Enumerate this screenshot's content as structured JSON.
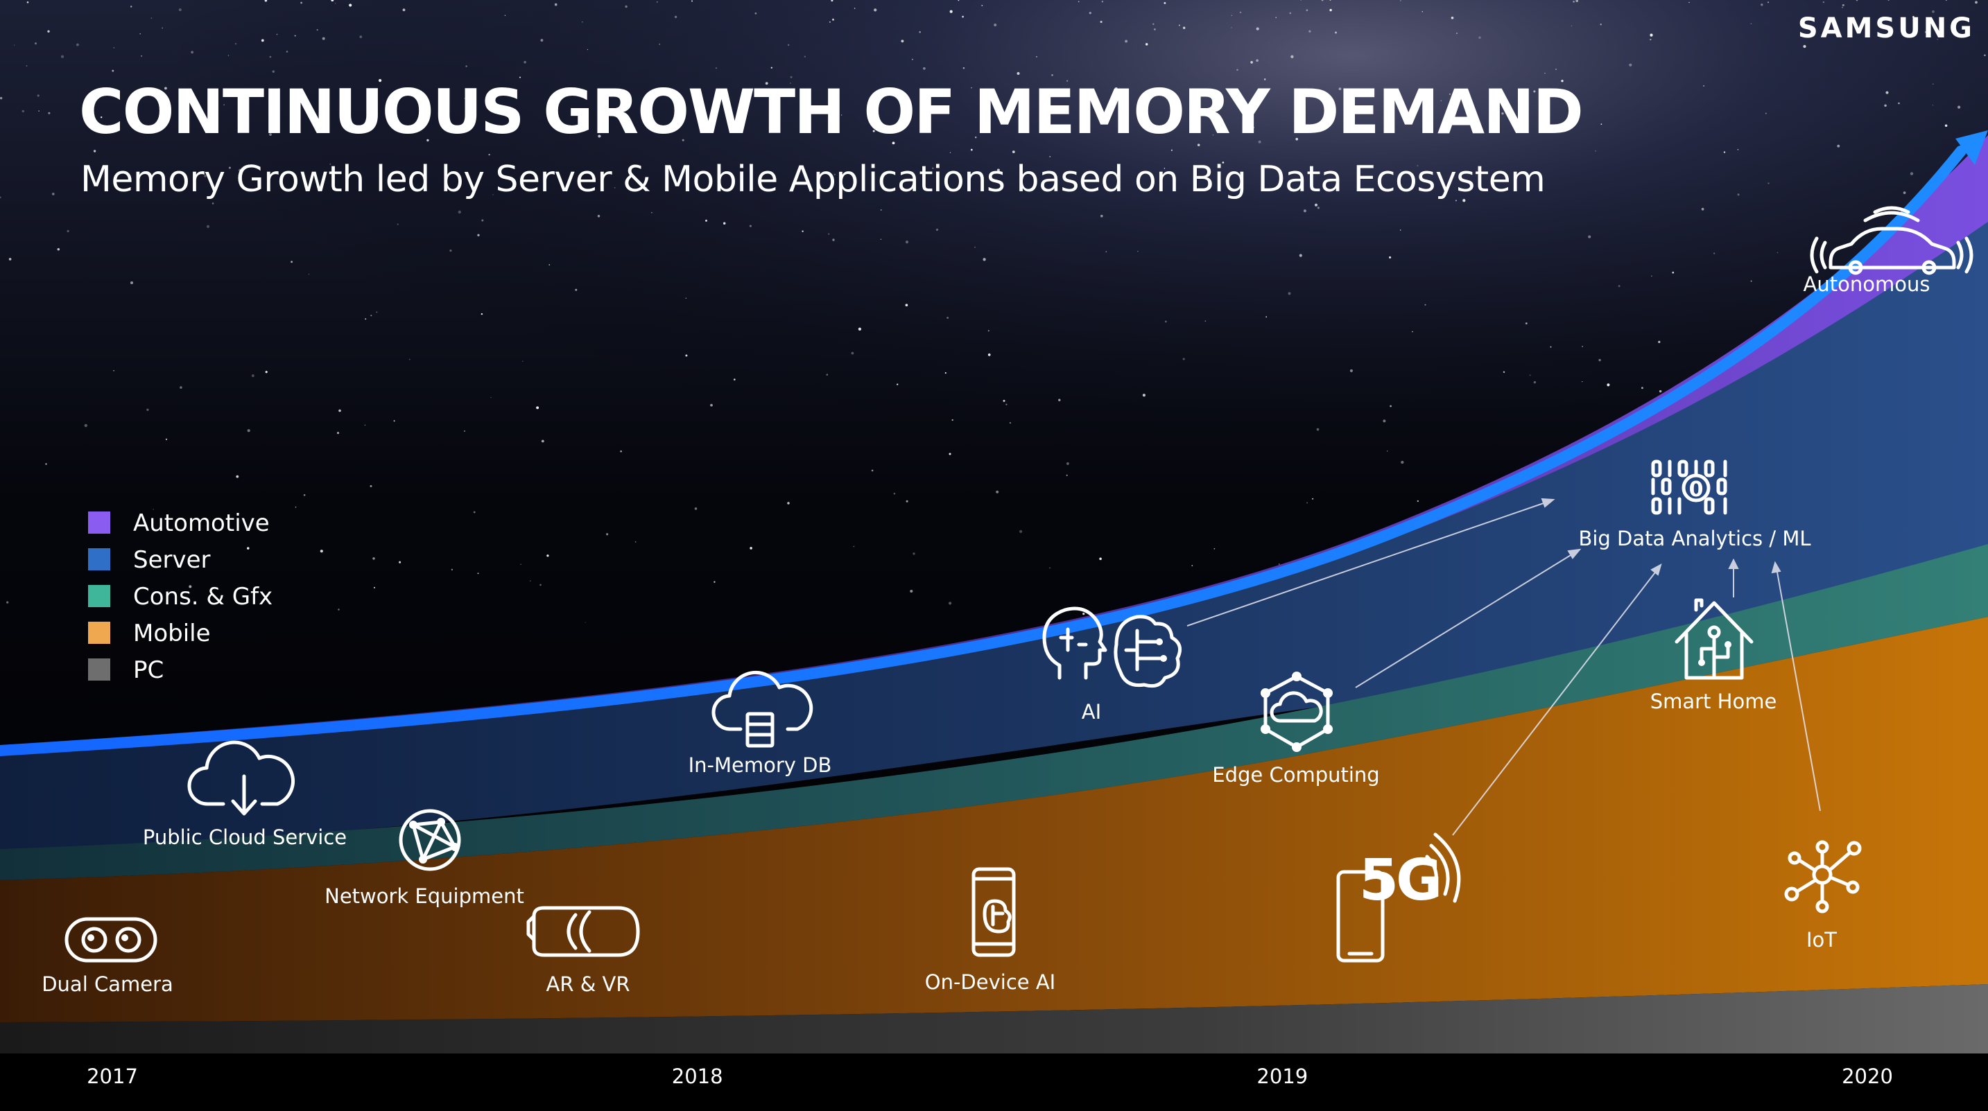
{
  "chart_data": {
    "type": "area",
    "title": "CONTINUOUS GROWTH OF MEMORY DEMAND",
    "subtitle": "Memory Growth led by Server & Mobile Applications based on Big Data Ecosystem",
    "categories": [
      "2017",
      "2018",
      "2019",
      "2020"
    ],
    "stacked": true,
    "series": [
      {
        "name": "Automotive",
        "color": "#8a5cf0"
      },
      {
        "name": "Server",
        "color": "#2f6fc8"
      },
      {
        "name": "Cons. & Gfx",
        "color": "#3fb59a"
      },
      {
        "name": "Mobile",
        "color": "#f0a850"
      },
      {
        "name": "PC",
        "color": "#6e6e6e"
      }
    ],
    "legend_position": "left",
    "grid": false,
    "annotations": [
      "Dual Camera",
      "Public Cloud Service",
      "Network Equipment",
      "AR & VR",
      "In-Memory DB",
      "AI",
      "On-Device AI",
      "Edge Computing",
      "5G",
      "Big Data Analytics / ML",
      "Smart Home",
      "IoT",
      "Autonomous"
    ]
  },
  "brand": "SAMSUNG",
  "applications": {
    "dual_camera": {
      "label": "Dual Camera",
      "icon": "dual-camera-icon"
    },
    "public_cloud": {
      "label": "Public Cloud Service",
      "icon": "cloud-download-icon"
    },
    "network_equipment": {
      "label": "Network Equipment",
      "icon": "network-globe-icon"
    },
    "ar_vr": {
      "label": "AR & VR",
      "icon": "vr-headset-icon"
    },
    "in_memory_db": {
      "label": "In-Memory DB",
      "icon": "cloud-database-icon"
    },
    "ai": {
      "label": "AI",
      "icon": "brain-head-icon"
    },
    "on_device_ai": {
      "label": "On-Device AI",
      "icon": "smartphone-brain-icon"
    },
    "edge_computing": {
      "label": "Edge Computing",
      "icon": "edge-cloud-hexagon-icon"
    },
    "five_g": {
      "label": "5G",
      "icon": "5g-phone-icon"
    },
    "big_data": {
      "label": "Big Data Analytics / ML",
      "icon": "binary-data-icon"
    },
    "smart_home": {
      "label": "Smart Home",
      "icon": "smart-home-icon"
    },
    "iot": {
      "label": "IoT",
      "icon": "iot-network-icon"
    },
    "autonomous": {
      "label": "Autonomous",
      "icon": "connected-car-icon"
    }
  },
  "colors": {
    "background": "#010205",
    "automotive_band": "#5a3fb0",
    "server_band": "#1d3a66",
    "cons_gfx_band": "#2c6a68",
    "mobile_band": "#b8680c",
    "pc_band": "#4a4a4a",
    "growth_arrow": "#1e6cff"
  }
}
